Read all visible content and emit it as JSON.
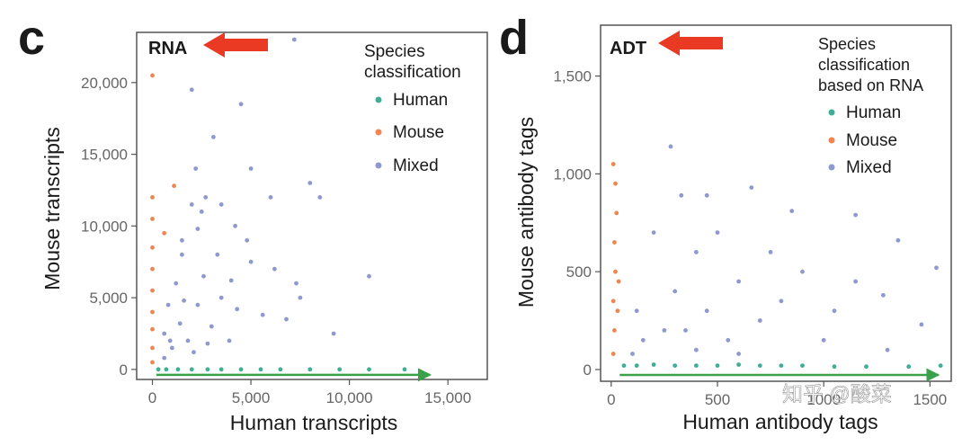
{
  "colors": {
    "human": "#3fae95",
    "mouse": "#ef8550",
    "mixed": "#8d99cf",
    "arrow_red": "#ea3a23",
    "arrow_green": "#3aa14a",
    "axis_text": "#666666",
    "frame": "#555555",
    "title_text": "#1a1a1a"
  },
  "watermark": "知乎 @酸菜",
  "chart_data": [
    {
      "panel_label": "c",
      "type": "scatter",
      "title": "RNA",
      "xlabel": "Human transcripts",
      "ylabel": "Mouse transcripts",
      "xlim": [
        -800,
        17000
      ],
      "ylim": [
        -700,
        23500
      ],
      "xticks": [
        0,
        5000,
        10000,
        15000
      ],
      "xtick_labels": [
        "0",
        "5,000",
        "10,000",
        "15,000"
      ],
      "yticks": [
        0,
        5000,
        10000,
        15000,
        20000
      ],
      "ytick_labels": [
        "0",
        "5,000",
        "10,000",
        "15,000",
        "20,000"
      ],
      "legend": {
        "title": "Species\nclassification",
        "position": "top-right",
        "entries": [
          "Human",
          "Mouse",
          "Mixed"
        ]
      },
      "arrows": [
        {
          "color": "red",
          "direction": "left",
          "near": "title"
        },
        {
          "color": "green",
          "direction": "right",
          "from": [
            200,
            0
          ],
          "to": [
            14100,
            0
          ]
        }
      ],
      "series": [
        {
          "name": "Human",
          "points": [
            [
              300,
              0
            ],
            [
              700,
              0
            ],
            [
              1300,
              0
            ],
            [
              2000,
              0
            ],
            [
              2800,
              0
            ],
            [
              3500,
              0
            ],
            [
              4500,
              0
            ],
            [
              5500,
              0
            ],
            [
              6500,
              0
            ],
            [
              8000,
              0
            ],
            [
              9500,
              0
            ],
            [
              11000,
              0
            ],
            [
              12800,
              0
            ]
          ]
        },
        {
          "name": "Mouse",
          "points": [
            [
              0,
              500
            ],
            [
              0,
              1500
            ],
            [
              0,
              2800
            ],
            [
              0,
              4000
            ],
            [
              0,
              5500
            ],
            [
              0,
              7000
            ],
            [
              0,
              8500
            ],
            [
              0,
              10500
            ],
            [
              0,
              12000
            ],
            [
              0,
              20500
            ],
            [
              600,
              9500
            ],
            [
              1100,
              12800
            ]
          ]
        },
        {
          "name": "Mixed",
          "points": [
            [
              2000,
              19500
            ],
            [
              2200,
              14000
            ],
            [
              4500,
              18500
            ],
            [
              3100,
              16200
            ],
            [
              5000,
              14000
            ],
            [
              6000,
              12000
            ],
            [
              7200,
              23000
            ],
            [
              8000,
              13000
            ],
            [
              8500,
              12000
            ],
            [
              11000,
              6500
            ],
            [
              9200,
              2500
            ],
            [
              7500,
              5000
            ],
            [
              6200,
              7000
            ],
            [
              5000,
              7500
            ],
            [
              4200,
              10000
            ],
            [
              3500,
              11500
            ],
            [
              2700,
              12000
            ],
            [
              2300,
              9800
            ],
            [
              2000,
              11500
            ],
            [
              1500,
              8000
            ],
            [
              1200,
              6000
            ],
            [
              800,
              4500
            ],
            [
              600,
              2500
            ],
            [
              1000,
              1500
            ],
            [
              1400,
              3200
            ],
            [
              1800,
              2000
            ],
            [
              2300,
              4500
            ],
            [
              2600,
              6500
            ],
            [
              3000,
              3000
            ],
            [
              3500,
              5000
            ],
            [
              3900,
              2000
            ],
            [
              4300,
              4200
            ],
            [
              5600,
              3800
            ],
            [
              600,
              800
            ],
            [
              900,
              2000
            ],
            [
              1600,
              4800
            ],
            [
              2100,
              1200
            ],
            [
              2800,
              1800
            ],
            [
              3300,
              8000
            ],
            [
              4800,
              9000
            ],
            [
              6800,
              3500
            ],
            [
              7300,
              6000
            ],
            [
              4000,
              6200
            ],
            [
              1500,
              9000
            ],
            [
              2500,
              11000
            ]
          ]
        }
      ]
    },
    {
      "panel_label": "d",
      "type": "scatter",
      "title": "ADT",
      "xlabel": "Human antibody tags",
      "ylabel": "Mouse antibody tags",
      "xlim": [
        -50,
        1600
      ],
      "ylim": [
        -60,
        1760
      ],
      "xticks": [
        0,
        500,
        1000,
        1500
      ],
      "xtick_labels": [
        "0",
        "500",
        "1000",
        "1500"
      ],
      "yticks": [
        0,
        500,
        1000,
        1500
      ],
      "ytick_labels": [
        "0",
        "500",
        "1,000",
        "1,500"
      ],
      "legend": {
        "title": "Species\nclassification\nbased on RNA",
        "position": "top-right",
        "entries": [
          "Human",
          "Mouse",
          "Mixed"
        ]
      },
      "arrows": [
        {
          "color": "red",
          "direction": "left",
          "near": "title"
        },
        {
          "color": "green",
          "direction": "right",
          "from": [
            40,
            0
          ],
          "to": [
            1540,
            0
          ]
        }
      ],
      "series": [
        {
          "name": "Human",
          "points": [
            [
              60,
              20
            ],
            [
              120,
              20
            ],
            [
              200,
              25
            ],
            [
              300,
              20
            ],
            [
              400,
              20
            ],
            [
              500,
              20
            ],
            [
              600,
              25
            ],
            [
              700,
              20
            ],
            [
              800,
              20
            ],
            [
              900,
              20
            ],
            [
              1050,
              15
            ],
            [
              1200,
              15
            ],
            [
              1400,
              15
            ],
            [
              1550,
              20
            ]
          ]
        },
        {
          "name": "Mouse",
          "points": [
            [
              10,
              80
            ],
            [
              15,
              200
            ],
            [
              10,
              350
            ],
            [
              20,
              500
            ],
            [
              15,
              650
            ],
            [
              25,
              800
            ],
            [
              20,
              950
            ],
            [
              10,
              1050
            ],
            [
              30,
              300
            ],
            [
              35,
              450
            ]
          ]
        },
        {
          "name": "Mixed",
          "points": [
            [
              280,
              1140
            ],
            [
              330,
              890
            ],
            [
              450,
              890
            ],
            [
              660,
              930
            ],
            [
              850,
              810
            ],
            [
              1150,
              790
            ],
            [
              1350,
              660
            ],
            [
              1530,
              520
            ],
            [
              1280,
              380
            ],
            [
              1460,
              230
            ],
            [
              1050,
              300
            ],
            [
              900,
              500
            ],
            [
              800,
              350
            ],
            [
              600,
              450
            ],
            [
              500,
              700
            ],
            [
              400,
              600
            ],
            [
              300,
              400
            ],
            [
              250,
              200
            ],
            [
              150,
              150
            ],
            [
              120,
              300
            ],
            [
              200,
              700
            ],
            [
              350,
              200
            ],
            [
              450,
              300
            ],
            [
              550,
              150
            ],
            [
              700,
              250
            ],
            [
              750,
              600
            ],
            [
              1000,
              150
            ],
            [
              1150,
              450
            ],
            [
              1300,
              100
            ],
            [
              100,
              80
            ],
            [
              600,
              80
            ],
            [
              400,
              100
            ]
          ]
        }
      ]
    }
  ]
}
